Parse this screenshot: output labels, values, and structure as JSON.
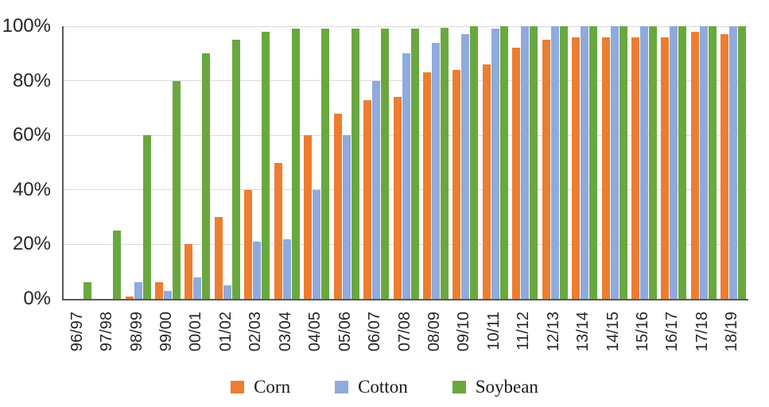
{
  "chart_data": {
    "type": "bar",
    "title": "",
    "xlabel": "",
    "ylabel": "",
    "categories": [
      "96/97",
      "97/98",
      "98/99",
      "99/00",
      "00/01",
      "01/02",
      "02/03",
      "03/04",
      "04/05",
      "05/06",
      "06/07",
      "07/08",
      "08/09",
      "09/10",
      "10/11",
      "11/12",
      "12/13",
      "13/14",
      "14/15",
      "15/16",
      "16/17",
      "17/18",
      "18/19"
    ],
    "series": [
      {
        "name": "Corn",
        "color": "#ED7D31",
        "values": [
          0,
          0,
          1,
          6,
          20,
          30,
          40,
          50,
          60,
          68,
          73,
          74,
          83,
          84,
          86,
          92,
          95,
          96,
          96,
          96,
          96,
          98,
          97
        ]
      },
      {
        "name": "Cotton",
        "color": "#8FAADC",
        "values": [
          0,
          0,
          6,
          3,
          8,
          5,
          21,
          22,
          40,
          60,
          80,
          90,
          94,
          97,
          99,
          100,
          100,
          100,
          100,
          100,
          100,
          100,
          100
        ]
      },
      {
        "name": "Soybean",
        "color": "#6AA83F",
        "values": [
          6,
          25,
          60,
          80,
          90,
          95,
          98,
          99,
          99,
          99,
          99,
          99,
          99.5,
          100,
          100,
          100,
          100,
          100,
          100,
          100,
          100,
          100,
          100
        ]
      }
    ],
    "y_ticks": [
      "0%",
      "20%",
      "40%",
      "60%",
      "80%",
      "100%"
    ],
    "ylim": [
      0,
      100
    ],
    "grid": true,
    "legend_position": "bottom",
    "colors": {
      "gridline": "#D9D9D9",
      "axis": "#595959",
      "tick_text": "#262626",
      "background": "#FFFFFF"
    }
  }
}
